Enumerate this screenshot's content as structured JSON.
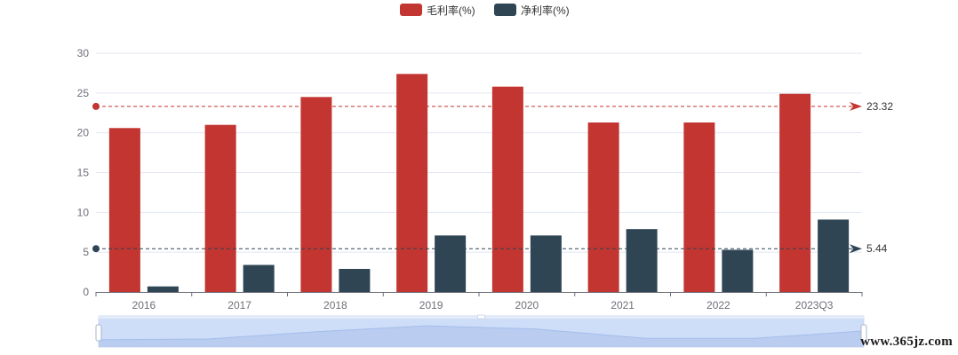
{
  "chart_data": {
    "type": "bar",
    "categories": [
      "2016",
      "2017",
      "2018",
      "2019",
      "2020",
      "2021",
      "2022",
      "2023Q3"
    ],
    "series": [
      {
        "name": "毛利率(%)",
        "color": "#c23531",
        "values": [
          20.6,
          21.0,
          24.5,
          27.4,
          25.8,
          21.3,
          21.3,
          24.9
        ]
      },
      {
        "name": "净利率(%)",
        "color": "#2f4554",
        "values": [
          0.7,
          3.4,
          2.9,
          7.1,
          7.1,
          7.9,
          5.3,
          9.1
        ]
      }
    ],
    "ylim": [
      0,
      30
    ],
    "yticks": [
      0,
      5,
      10,
      15,
      20,
      25,
      30
    ],
    "mark_lines": [
      {
        "series": "毛利率(%)",
        "value": 23.32,
        "label": "23.32"
      },
      {
        "series": "净利率(%)",
        "value": 5.44,
        "label": "5.44"
      }
    ],
    "grid": "horizontal",
    "legend": "top-center",
    "datazoom": {
      "start": 0,
      "end": 100
    }
  },
  "watermark": "www.365jz.com"
}
